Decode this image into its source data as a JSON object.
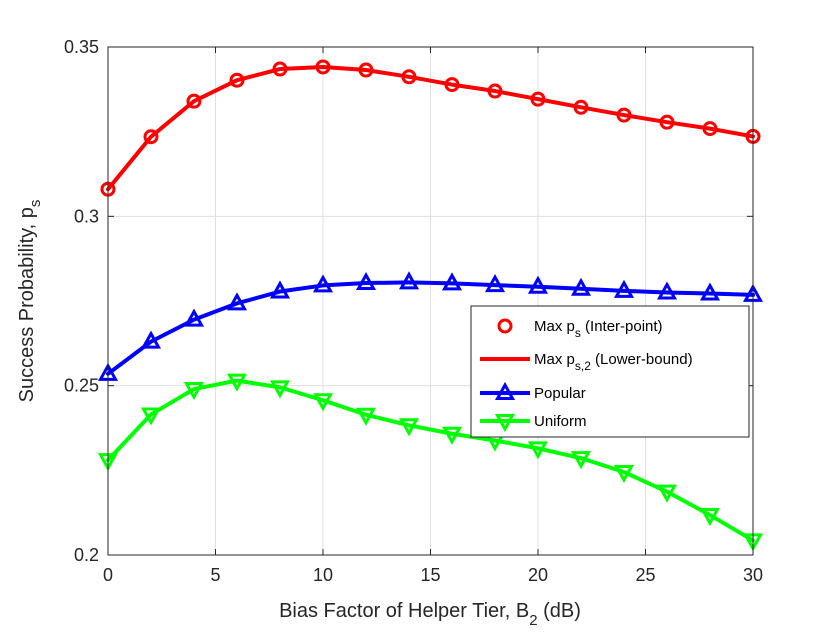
{
  "chart_data": {
    "type": "line",
    "title": "",
    "xlabel": {
      "main": "Bias Factor of Helper Tier, B",
      "sub": "2",
      "suffix": " (dB)"
    },
    "ylabel": {
      "main": "Success Probability, p",
      "sub": "s"
    },
    "xlim": [
      0,
      30
    ],
    "ylim": [
      0.2,
      0.35
    ],
    "xticks": [
      0,
      5,
      10,
      15,
      20,
      25,
      30
    ],
    "xtick_labels": [
      "0",
      "5",
      "10",
      "15",
      "20",
      "25",
      "30"
    ],
    "yticks": [
      0.2,
      0.25,
      0.3,
      0.35
    ],
    "ytick_labels": [
      "0.2",
      "0.25",
      "0.3",
      "0.35"
    ],
    "grid": true,
    "legend_position": "center-right",
    "x": [
      0,
      2,
      4,
      6,
      8,
      10,
      12,
      14,
      16,
      18,
      20,
      22,
      24,
      26,
      28,
      30
    ],
    "series": [
      {
        "name": "Max p_s (Inter-point)",
        "label_main": "Max p",
        "label_sub": "s",
        "label_suffix": " (Inter-point)",
        "color": "#ff0000",
        "line": false,
        "marker": "circle",
        "values": [
          0.308,
          0.3235,
          0.334,
          0.3402,
          0.3435,
          0.3441,
          0.3432,
          0.3412,
          0.3389,
          0.337,
          0.3346,
          0.3322,
          0.3299,
          0.3278,
          0.3259,
          0.3236
        ]
      },
      {
        "name": "Max p_s,2 (Lower-bound)",
        "label_main": "Max p",
        "label_sub": "s,2",
        "label_suffix": " (Lower-bound)",
        "color": "#ff0000",
        "line": true,
        "marker": "none",
        "values": [
          0.308,
          0.3235,
          0.334,
          0.3402,
          0.3435,
          0.3441,
          0.3432,
          0.3412,
          0.3389,
          0.337,
          0.3346,
          0.3322,
          0.3299,
          0.3278,
          0.3259,
          0.3236
        ]
      },
      {
        "name": "Popular",
        "label_main": "Popular",
        "label_sub": "",
        "label_suffix": "",
        "color": "#0000ff",
        "line": true,
        "marker": "triangle-up",
        "values": [
          0.2535,
          0.263,
          0.2695,
          0.2743,
          0.2778,
          0.2796,
          0.2803,
          0.2805,
          0.2802,
          0.2797,
          0.2792,
          0.2786,
          0.278,
          0.2775,
          0.2772,
          0.2768
        ]
      },
      {
        "name": "Uniform",
        "label_main": "Uniform",
        "label_sub": "",
        "label_suffix": "",
        "color": "#00ff00",
        "line": true,
        "marker": "triangle-down",
        "values": [
          0.228,
          0.2415,
          0.249,
          0.2515,
          0.2495,
          0.2457,
          0.2414,
          0.2383,
          0.2358,
          0.2338,
          0.2315,
          0.2286,
          0.2245,
          0.2187,
          0.2118,
          0.2043
        ]
      }
    ]
  }
}
